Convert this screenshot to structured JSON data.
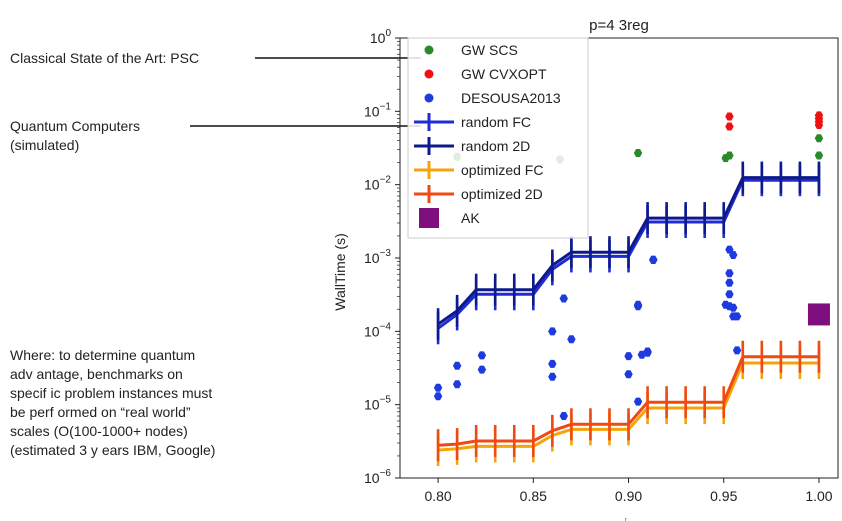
{
  "annotations": {
    "psc": "Classical State of the Art: PSC",
    "quantum_line1": "Quantum Computers",
    "quantum_line2": "(simulated)",
    "note_lines": [
      "Where: to determine quantum",
      "adv antage, benchmarks on",
      "specif ic problem instances must",
      "be perf ormed on “real world”",
      "scales  (O(100-1000+ nodes)",
      "(estimated 3 y ears IBM, Google)"
    ]
  },
  "chart_data": {
    "type": "scatter",
    "title": "p=4 3reg",
    "ylabel": "WallTime (s)",
    "xlabel": "r",
    "yscale": "log",
    "xlim": [
      0.78,
      1.01
    ],
    "ylim": [
      1e-06,
      1
    ],
    "xticks": [
      "0.80",
      "0.85",
      "0.90",
      "0.95",
      "1.00"
    ],
    "xtick_values": [
      0.8,
      0.85,
      0.9,
      0.95,
      1.0
    ],
    "ytick_exponents": [
      -6,
      -5,
      -4,
      -3,
      -2,
      -1,
      0
    ],
    "legend_position": "top-left",
    "scatter_series": [
      {
        "name": "GW SCS",
        "color": "#2a8a2a",
        "x": [
          0.81,
          0.864,
          0.905,
          0.951,
          0.953,
          1.0,
          1.0
        ],
        "y": [
          0.024,
          0.022,
          0.027,
          0.023,
          0.025,
          0.043,
          0.025
        ]
      },
      {
        "name": "GW CVXOPT",
        "color": "#ee1111",
        "x": [
          0.953,
          0.953,
          1.0,
          1.0,
          1.0,
          1.0
        ],
        "y": [
          0.085,
          0.062,
          0.088,
          0.08,
          0.072,
          0.065
        ]
      },
      {
        "name": "DESOUSA2013",
        "color": "#1f3be0",
        "x": [
          0.8,
          0.8,
          0.81,
          0.81,
          0.823,
          0.823,
          0.86,
          0.86,
          0.86,
          0.866,
          0.866,
          0.87,
          0.9,
          0.9,
          0.905,
          0.905,
          0.905,
          0.907,
          0.91,
          0.91,
          0.913,
          0.913,
          0.951,
          0.953,
          0.953,
          0.953,
          0.953,
          0.953,
          0.955,
          0.955,
          0.955,
          0.957,
          0.957
        ],
        "y": [
          1.7e-05,
          1.3e-05,
          3.4e-05,
          1.9e-05,
          4.7e-05,
          3e-05,
          0.0001,
          3.6e-05,
          2.4e-05,
          7e-06,
          0.00028,
          7.8e-05,
          2.6e-05,
          4.6e-05,
          0.00023,
          0.00022,
          1.1e-05,
          4.8e-05,
          5.1e-05,
          5.3e-05,
          0.00095,
          0.00094,
          0.00023,
          0.0013,
          0.00062,
          0.00046,
          0.00032,
          0.00022,
          0.0011,
          0.00021,
          0.00016,
          0.00016,
          5.5e-05
        ]
      },
      {
        "name": "AK",
        "color": "#7f0f7f",
        "marker": "square",
        "x": [
          1.0
        ],
        "y": [
          0.00017
        ]
      }
    ],
    "line_series": [
      {
        "name": "random FC",
        "color": "#1f2bd6",
        "x": [
          0.8,
          0.81,
          0.82,
          0.83,
          0.84,
          0.85,
          0.86,
          0.87,
          0.88,
          0.89,
          0.9,
          0.91,
          0.92,
          0.93,
          0.94,
          0.95,
          0.96,
          0.97,
          0.98,
          0.99,
          1.0
        ],
        "y": [
          0.00011,
          0.00017,
          0.00032,
          0.00032,
          0.00032,
          0.00032,
          0.0007,
          0.00105,
          0.00105,
          0.00105,
          0.00105,
          0.0031,
          0.0031,
          0.0031,
          0.0031,
          0.0031,
          0.0115,
          0.0115,
          0.0115,
          0.0115,
          0.0115
        ]
      },
      {
        "name": "random 2D",
        "color": "#0e1a8c",
        "x": [
          0.8,
          0.81,
          0.82,
          0.83,
          0.84,
          0.85,
          0.86,
          0.87,
          0.88,
          0.89,
          0.9,
          0.91,
          0.92,
          0.93,
          0.94,
          0.95,
          0.96,
          0.97,
          0.98,
          0.99,
          1.0
        ],
        "y": [
          0.000125,
          0.00019,
          0.00037,
          0.00037,
          0.00037,
          0.00037,
          0.00079,
          0.0012,
          0.0012,
          0.0012,
          0.0012,
          0.0035,
          0.0035,
          0.0035,
          0.0035,
          0.0035,
          0.0125,
          0.0125,
          0.0125,
          0.0125,
          0.0125
        ]
      },
      {
        "name": "optimized FC",
        "color": "#f5a30a",
        "x": [
          0.8,
          0.81,
          0.82,
          0.83,
          0.84,
          0.85,
          0.86,
          0.87,
          0.88,
          0.89,
          0.9,
          0.91,
          0.92,
          0.93,
          0.94,
          0.95,
          0.96,
          0.97,
          0.98,
          0.99,
          1.0
        ],
        "y": [
          2.4e-06,
          2.5e-06,
          2.7e-06,
          2.7e-06,
          2.7e-06,
          2.7e-06,
          3.8e-06,
          4.6e-06,
          4.6e-06,
          4.6e-06,
          4.6e-06,
          9e-06,
          9e-06,
          9e-06,
          9e-06,
          9e-06,
          3.7e-05,
          3.7e-05,
          3.7e-05,
          3.7e-05,
          3.7e-05
        ]
      },
      {
        "name": "optimized 2D",
        "color": "#f04a12",
        "x": [
          0.8,
          0.81,
          0.82,
          0.83,
          0.84,
          0.85,
          0.86,
          0.87,
          0.88,
          0.89,
          0.9,
          0.91,
          0.92,
          0.93,
          0.94,
          0.95,
          0.96,
          0.97,
          0.98,
          0.99,
          1.0
        ],
        "y": [
          2.8e-06,
          2.9e-06,
          3.2e-06,
          3.2e-06,
          3.2e-06,
          3.2e-06,
          4.4e-06,
          5.4e-06,
          5.4e-06,
          5.4e-06,
          5.4e-06,
          1.08e-05,
          1.08e-05,
          1.08e-05,
          1.08e-05,
          1.08e-05,
          4.5e-05,
          4.5e-05,
          4.5e-05,
          4.5e-05,
          4.5e-05
        ]
      }
    ],
    "legend": [
      "GW SCS",
      "GW CVXOPT",
      "DESOUSA2013",
      "random FC",
      "random 2D",
      "optimized FC",
      "optimized 2D",
      "AK"
    ]
  }
}
